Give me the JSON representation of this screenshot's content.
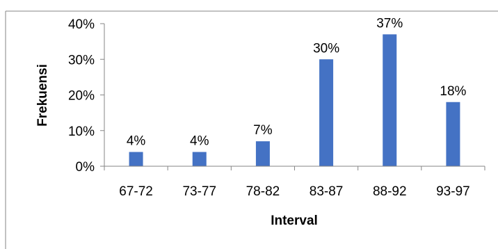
{
  "chart_data": {
    "type": "bar",
    "categories": [
      "67-72",
      "73-77",
      "78-82",
      "83-87",
      "88-92",
      "93-97"
    ],
    "values": [
      4,
      4,
      7,
      30,
      37,
      18
    ],
    "data_labels": [
      "4%",
      "4%",
      "7%",
      "30%",
      "37%",
      "18%"
    ],
    "xlabel": "Interval",
    "ylabel": "Frekuensi",
    "ylim": [
      0,
      40
    ],
    "yticks": [
      0,
      10,
      20,
      30,
      40
    ],
    "ytick_labels": [
      "0%",
      "10%",
      "20%",
      "30%",
      "40%"
    ],
    "bar_color": "#4472C4",
    "axis_color": "#868686",
    "grid": false,
    "legend": "none"
  }
}
